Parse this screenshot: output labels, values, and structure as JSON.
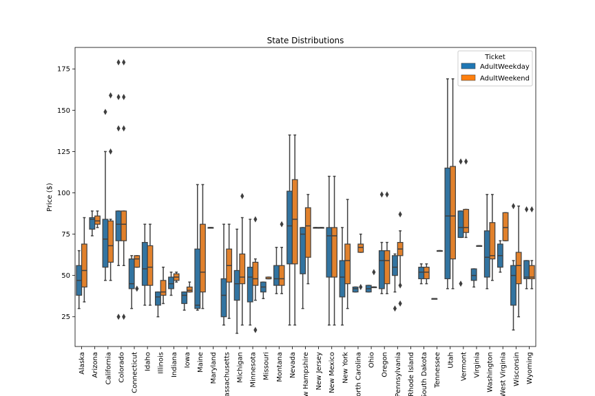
{
  "chart_data": {
    "type": "box",
    "title": "State Distributions",
    "xlabel": "",
    "ylabel": "Price ($)",
    "ylim": [
      7,
      188
    ],
    "yticks": [
      25,
      50,
      75,
      100,
      125,
      150,
      175
    ],
    "grid": false,
    "legend": {
      "title": "Ticket",
      "placement": "top-right",
      "entries": [
        {
          "name": "AdultWeekday",
          "color": "#1f77b4"
        },
        {
          "name": "AdultWeekend",
          "color": "#ff7f0e"
        }
      ]
    },
    "series_colors": {
      "AdultWeekday": "#3274a1",
      "AdultWeekend": "#e1812c"
    },
    "categories": [
      "Alaska",
      "Arizona",
      "California",
      "Colorado",
      "Connecticut",
      "Idaho",
      "Illinois",
      "Indiana",
      "Iowa",
      "Maine",
      "Maryland",
      "Massachusetts",
      "Michigan",
      "Minnesota",
      "Missouri",
      "Montana",
      "Nevada",
      "New Hampshire",
      "New Jersey",
      "New Mexico",
      "New York",
      "North Carolina",
      "Ohio",
      "Oregon",
      "Pennsylvania",
      "Rhode Island",
      "South Dakota",
      "Tennessee",
      "Utah",
      "Vermont",
      "Virginia",
      "Washington",
      "West Virginia",
      "Wisconsin",
      "Wyoming"
    ],
    "boxes": [
      [
        [
          30,
          38,
          47,
          56,
          65,
          []
        ],
        [
          34,
          43,
          53,
          69,
          85,
          []
        ]
      ],
      [
        [
          74,
          78,
          84,
          85,
          89,
          []
        ],
        [
          79,
          81,
          83,
          86,
          89,
          []
        ]
      ],
      [
        [
          47,
          55,
          72,
          84,
          125,
          [
            149
          ]
        ],
        [
          47,
          58,
          68,
          83,
          84,
          [
            159,
            125
          ]
        ]
      ],
      [
        [
          56,
          71,
          81,
          89,
          89,
          [
            179,
            158,
            139,
            25
          ]
        ],
        [
          56,
          71,
          81,
          89,
          89,
          [
            179,
            158,
            139,
            25
          ]
        ]
      ],
      [
        [
          30,
          42,
          45,
          60,
          62,
          []
        ],
        [
          55,
          55,
          60,
          62,
          62,
          [
            42
          ]
        ]
      ],
      [
        [
          32,
          44,
          54,
          70,
          81,
          []
        ],
        [
          32,
          44,
          55,
          68,
          81,
          []
        ]
      ],
      [
        [
          25,
          32,
          37,
          40,
          40,
          []
        ],
        [
          33,
          38,
          40,
          47,
          55,
          []
        ]
      ],
      [
        [
          38,
          42,
          45,
          49,
          52,
          []
        ],
        [
          46,
          47,
          49,
          51,
          52,
          []
        ]
      ],
      [
        [
          29,
          33,
          38,
          40,
          40,
          []
        ],
        [
          40,
          40,
          41,
          43,
          46,
          []
        ]
      ],
      [
        [
          29,
          30,
          32,
          66,
          105,
          []
        ],
        [
          30,
          40,
          52,
          81,
          105,
          []
        ]
      ],
      [
        [
          79,
          79,
          79,
          79,
          79,
          []
        ],
        null
      ],
      [
        [
          20,
          25,
          38,
          48,
          81,
          []
        ],
        [
          24,
          46,
          56,
          66,
          81,
          []
        ]
      ],
      [
        [
          15,
          35,
          45,
          53,
          78,
          []
        ],
        [
          20,
          45,
          49,
          63,
          85,
          [
            98
          ]
        ]
      ],
      [
        [
          20,
          34,
          49,
          55,
          84,
          []
        ],
        [
          35,
          44,
          48,
          58,
          60,
          [
            84,
            17
          ]
        ]
      ],
      [
        [
          36,
          40,
          43,
          46,
          46,
          []
        ],
        [
          48,
          48,
          48,
          49,
          49,
          []
        ]
      ],
      [
        [
          39,
          44,
          48,
          56,
          67,
          []
        ],
        [
          39,
          44,
          48,
          56,
          67,
          [
            81
          ]
        ]
      ],
      [
        [
          20,
          57,
          80,
          101,
          135,
          []
        ],
        [
          20,
          57,
          84,
          108,
          135,
          []
        ]
      ],
      [
        [
          30,
          51,
          75,
          79,
          79,
          []
        ],
        [
          45,
          61,
          80,
          91,
          99,
          []
        ]
      ],
      [
        [
          79,
          79,
          79,
          79,
          79,
          []
        ],
        [
          79,
          79,
          79,
          79,
          79,
          []
        ]
      ],
      [
        [
          20,
          49,
          74,
          79,
          110,
          []
        ],
        [
          20,
          49,
          74,
          79,
          110,
          []
        ]
      ],
      [
        [
          20,
          37,
          49,
          59,
          79,
          []
        ],
        [
          30,
          45,
          59,
          69,
          96,
          []
        ]
      ],
      [
        [
          40,
          40,
          42,
          43,
          43,
          []
        ],
        [
          64,
          64,
          67,
          69,
          75,
          [
            43
          ]
        ]
      ],
      [
        [
          40,
          40,
          42,
          44,
          44,
          []
        ],
        [
          43,
          43,
          43,
          43,
          43,
          [
            52
          ]
        ]
      ],
      [
        [
          39,
          42,
          59,
          65,
          70,
          [
            99
          ]
        ],
        [
          39,
          45,
          59,
          65,
          70,
          [
            99
          ]
        ]
      ],
      [
        [
          40,
          50,
          55,
          62,
          63,
          [
            30
          ]
        ],
        [
          44,
          62,
          66,
          70,
          77,
          [
            87,
            44,
            33
          ]
        ]
      ],
      [
        null,
        null
      ],
      [
        [
          45,
          48,
          52,
          55,
          57,
          []
        ],
        [
          45,
          48,
          52,
          55,
          57,
          []
        ]
      ],
      [
        [
          36,
          36,
          36,
          36,
          36,
          []
        ],
        [
          65,
          65,
          65,
          65,
          65,
          []
        ]
      ],
      [
        [
          42,
          48,
          86,
          115,
          169,
          []
        ],
        [
          42,
          60,
          86,
          116,
          169,
          []
        ]
      ],
      [
        [
          73,
          73,
          79,
          89,
          89,
          [
            119,
            45
          ]
        ],
        [
          73,
          76,
          79,
          90,
          90,
          [
            119
          ]
        ]
      ],
      [
        [
          43,
          47,
          50,
          54,
          54,
          []
        ],
        [
          68,
          68,
          68,
          68,
          68,
          []
        ]
      ],
      [
        [
          42,
          49,
          61,
          77,
          99,
          []
        ],
        [
          47,
          60,
          62,
          82,
          99,
          []
        ]
      ],
      [
        [
          52,
          55,
          62,
          69,
          71,
          []
        ],
        [
          71,
          71,
          79,
          88,
          88,
          []
        ]
      ],
      [
        [
          17,
          32,
          50,
          56,
          59,
          [
            92
          ]
        ],
        [
          25,
          45,
          56,
          64,
          92,
          []
        ]
      ],
      [
        [
          42,
          48,
          49,
          59,
          59,
          [
            90
          ]
        ],
        [
          42,
          48,
          49,
          56,
          59,
          [
            90
          ]
        ]
      ]
    ]
  }
}
